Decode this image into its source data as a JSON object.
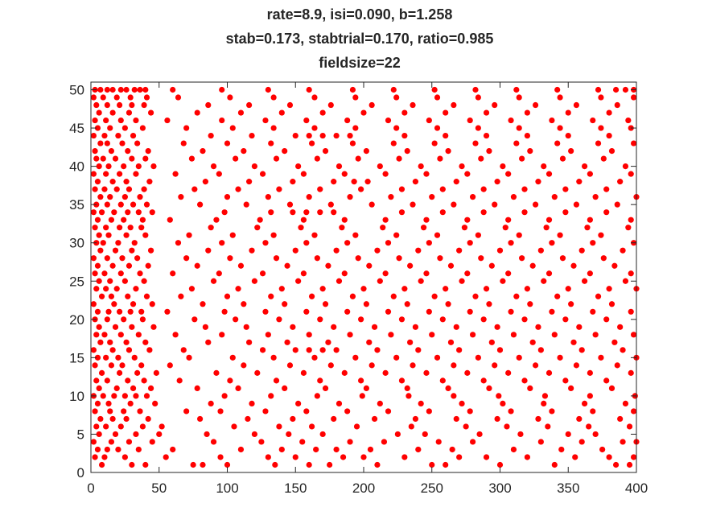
{
  "chart_data": {
    "type": "scatter",
    "title_lines": [
      "rate=8.9, isi=0.090, b=1.258",
      "stab=0.173, stabtrial=0.170, ratio=0.985",
      "fieldsize=22"
    ],
    "xlabel": "",
    "ylabel": "",
    "xlim": [
      0,
      400
    ],
    "ylim": [
      0,
      51
    ],
    "x_ticks": [
      0,
      50,
      100,
      150,
      200,
      250,
      300,
      350,
      400
    ],
    "y_ticks": [
      0,
      5,
      10,
      15,
      20,
      25,
      30,
      35,
      40,
      45,
      50
    ],
    "grid": false,
    "marker_color": "#ff0000",
    "series": [
      {
        "rows": [
          {
            "y": 1,
            "x": [
              8,
              30,
              40,
              75,
              82,
              100,
              135,
              160,
              175,
              210,
              250,
              260,
              300,
              340,
              385,
              395
            ]
          },
          {
            "y": 2,
            "x": [
              3,
              10,
              25,
              55,
              95,
              130,
              150,
              185,
              200,
              230,
              270,
              290,
              320,
              355,
              380,
              398
            ]
          },
          {
            "y": 3,
            "x": [
              5,
              12,
              20,
              35,
              60,
              110,
              140,
              165,
              180,
              205,
              240,
              265,
              310,
              345,
              375
            ]
          },
          {
            "y": 4,
            "x": [
              2,
              15,
              28,
              45,
              90,
              125,
              155,
              190,
              215,
              255,
              280,
              330,
              360,
              390,
              400
            ]
          },
          {
            "y": 5,
            "x": [
              6,
              18,
              33,
              50,
              85,
              120,
              145,
              170,
              225,
              245,
              285,
              315,
              350,
              370
            ]
          },
          {
            "y": 6,
            "x": [
              4,
              11,
              22,
              38,
              52,
              105,
              138,
              162,
              195,
              235,
              275,
              305,
              335,
              365,
              395
            ]
          },
          {
            "y": 7,
            "x": [
              7,
              16,
              26,
              42,
              80,
              115,
              148,
              178,
              208,
              238,
              268,
              298,
              328,
              358,
              388
            ]
          },
          {
            "y": 8,
            "x": [
              3,
              14,
              24,
              36,
              70,
              95,
              128,
              158,
              188,
              218,
              248,
              278,
              308,
              338,
              368,
              398
            ]
          },
          {
            "y": 9,
            "x": [
              5,
              13,
              29,
              47,
              88,
              118,
              152,
              182,
              212,
              242,
              272,
              302,
              332,
              362,
              392
            ]
          },
          {
            "y": 10,
            "x": [
              2,
              9,
              17,
              25,
              33,
              41,
              98,
              132,
              166,
              199,
              233,
              266,
              299,
              333,
              366,
              399
            ]
          },
          {
            "y": 11,
            "x": [
              6,
              19,
              31,
              44,
              78,
              108,
              142,
              172,
              202,
              232,
              262,
              292,
              322,
              352,
              382
            ]
          },
          {
            "y": 12,
            "x": [
              4,
              12,
              27,
              39,
              65,
              102,
              136,
              168,
              198,
              228,
              258,
              288,
              318,
              348,
              378
            ]
          },
          {
            "y": 13,
            "x": [
              8,
              21,
              34,
              48,
              92,
              122,
              156,
              186,
              216,
              246,
              276,
              306,
              336,
              366,
              396
            ]
          },
          {
            "y": 14,
            "x": [
              3,
              15,
              23,
              37,
              58,
              112,
              146,
              176,
              206,
              236,
              266,
              296,
              326,
              356,
              386
            ]
          },
          {
            "y": 15,
            "x": [
              5,
              11,
              20,
              32,
              72,
              104,
              134,
              164,
              194,
              224,
              254,
              284,
              314,
              344,
              374,
              400
            ]
          },
          {
            "y": 16,
            "x": [
              2,
              16,
              28,
              43,
              68,
              126,
              150,
              160,
              170,
              180,
              210,
              240,
              270,
              300,
              330,
              360,
              390
            ]
          },
          {
            "y": 17,
            "x": [
              7,
              14,
              26,
              40,
              86,
              116,
              144,
              174,
              204,
              234,
              264,
              294,
              324,
              354,
              384
            ]
          },
          {
            "y": 18,
            "x": [
              4,
              10,
              22,
              35,
              62,
              96,
              130,
              160,
              190,
              220,
              250,
              280,
              310,
              340,
              370,
              398
            ]
          },
          {
            "y": 19,
            "x": [
              6,
              18,
              30,
              46,
              84,
              114,
              148,
              178,
              208,
              238,
              268,
              298,
              328,
              358,
              388
            ]
          },
          {
            "y": 20,
            "x": [
              3,
              12,
              24,
              38,
              76,
              106,
              138,
              168,
              198,
              228,
              258,
              288,
              318,
              348,
              378
            ]
          },
          {
            "y": 21,
            "x": [
              5,
              13,
              21,
              29,
              37,
              56,
              98,
              128,
              158,
              188,
              218,
              248,
              278,
              308,
              338,
              368,
              396
            ]
          },
          {
            "y": 22,
            "x": [
              2,
              17,
              31,
              45,
              82,
              112,
              142,
              172,
              202,
              232,
              262,
              292,
              322,
              352,
              382
            ]
          },
          {
            "y": 23,
            "x": [
              8,
              15,
              27,
              41,
              66,
              100,
              132,
              162,
              192,
              222,
              252,
              282,
              312,
              342,
              372
            ]
          },
          {
            "y": 24,
            "x": [
              4,
              11,
              19,
              33,
              74,
              108,
              140,
              170,
              200,
              230,
              260,
              290,
              320,
              350,
              380,
              400
            ]
          },
          {
            "y": 25,
            "x": [
              6,
              14,
              25,
              39,
              90,
              120,
              152,
              182,
              212,
              242,
              272,
              302,
              332,
              362,
              392
            ]
          },
          {
            "y": 26,
            "x": [
              3,
              10,
              22,
              36,
              60,
              94,
              126,
              156,
              186,
              216,
              246,
              276,
              306,
              336,
              366,
              396
            ]
          },
          {
            "y": 27,
            "x": [
              5,
              16,
              28,
              42,
              78,
              110,
              144,
              174,
              204,
              234,
              264,
              294,
              324,
              354,
              384
            ]
          },
          {
            "y": 28,
            "x": [
              2,
              12,
              23,
              34,
              70,
              102,
              136,
              166,
              196,
              226,
              256,
              286,
              316,
              346,
              376
            ]
          },
          {
            "y": 29,
            "x": [
              7,
              18,
              30,
              44,
              86,
              118,
              150,
              180,
              210,
              240,
              270,
              300,
              330,
              360,
              390
            ]
          },
          {
            "y": 30,
            "x": [
              4,
              9,
              20,
              32,
              64,
              96,
              128,
              158,
              188,
              218,
              248,
              278,
              308,
              338,
              368,
              398
            ]
          },
          {
            "y": 31,
            "x": [
              6,
              13,
              26,
              40,
              72,
              104,
              134,
              164,
              194,
              224,
              254,
              284,
              314,
              344,
              374
            ]
          },
          {
            "y": 32,
            "x": [
              3,
              11,
              21,
              29,
              37,
              88,
              122,
              154,
              184,
              214,
              244,
              274,
              304,
              334,
              364,
              394
            ]
          },
          {
            "y": 33,
            "x": [
              5,
              15,
              24,
              38,
              58,
              92,
              124,
              156,
              186,
              216,
              246,
              276,
              306,
              336,
              366,
              396
            ]
          },
          {
            "y": 34,
            "x": [
              2,
              8,
              17,
              27,
              35,
              45,
              98,
              132,
              148,
              158,
              168,
              178,
              228,
              258,
              288,
              318,
              348,
              378
            ]
          },
          {
            "y": 35,
            "x": [
              4,
              12,
              22,
              31,
              41,
              80,
              114,
              146,
              176,
              206,
              236,
              266,
              296,
              326,
              356,
              386
            ]
          },
          {
            "y": 36,
            "x": [
              7,
              14,
              25,
              36,
              66,
              100,
              130,
              160,
              190,
              220,
              250,
              280,
              310,
              340,
              370,
              400
            ]
          },
          {
            "y": 37,
            "x": [
              3,
              10,
              19,
              28,
              39,
              76,
              108,
              138,
              168,
              198,
              228,
              258,
              288,
              318,
              348,
              378
            ]
          },
          {
            "y": 38,
            "x": [
              5,
              16,
              26,
              43,
              84,
              116,
              148,
              178,
              193,
              203,
              238,
              268,
              298,
              328,
              358,
              388
            ]
          },
          {
            "y": 39,
            "x": [
              2,
              11,
              21,
              33,
              62,
              94,
              126,
              156,
              186,
              216,
              246,
              276,
              306,
              336,
              366,
              396
            ]
          },
          {
            "y": 40,
            "x": [
              6,
              13,
              24,
              35,
              46,
              90,
              120,
              152,
              182,
              212,
              242,
              272,
              302,
              332,
              362,
              392
            ]
          },
          {
            "y": 41,
            "x": [
              4,
              9,
              18,
              30,
              40,
              74,
              106,
              136,
              166,
              196,
              226,
              256,
              286,
              316,
              346,
              376
            ]
          },
          {
            "y": 42,
            "x": [
              3,
              15,
              27,
              42,
              82,
              112,
              142,
              172,
              202,
              232,
              262,
              292,
              322,
              352,
              382
            ]
          },
          {
            "y": 43,
            "x": [
              7,
              12,
              23,
              34,
              68,
              100,
              132,
              162,
              192,
              222,
              252,
              282,
              312,
              342,
              372,
              398
            ]
          },
          {
            "y": 44,
            "x": [
              2,
              10,
              20,
              31,
              88,
              118,
              150,
              160,
              170,
              180,
              190,
              230,
              260,
              290,
              320,
              350,
              380
            ]
          },
          {
            "y": 45,
            "x": [
              5,
              14,
              25,
              38,
              70,
              104,
              134,
              164,
              194,
              224,
              254,
              284,
              314,
              344,
              374,
              396
            ]
          },
          {
            "y": 46,
            "x": [
              3,
              11,
              22,
              33,
              56,
              96,
              128,
              158,
              188,
              218,
              248,
              278,
              308,
              338,
              368,
              394
            ]
          },
          {
            "y": 47,
            "x": [
              6,
              16,
              28,
              44,
              78,
              110,
              140,
              170,
              200,
              230,
              260,
              290,
              320,
              350,
              380
            ]
          },
          {
            "y": 48,
            "x": [
              4,
              12,
              21,
              30,
              39,
              86,
              116,
              146,
              176,
              206,
              236,
              266,
              296,
              326,
              356,
              386
            ]
          },
          {
            "y": 49,
            "x": [
              2,
              9,
              19,
              29,
              41,
              64,
              102,
              134,
              164,
              194,
              224,
              254,
              284,
              314,
              344,
              374,
              398
            ]
          },
          {
            "y": 50,
            "x": [
              3,
              7,
              12,
              16,
              22,
              26,
              32,
              36,
              40,
              60,
              96,
              130,
              160,
              192,
              222,
              252,
              282,
              312,
              342,
              372,
              385,
              392,
              398
            ]
          }
        ]
      }
    ]
  }
}
